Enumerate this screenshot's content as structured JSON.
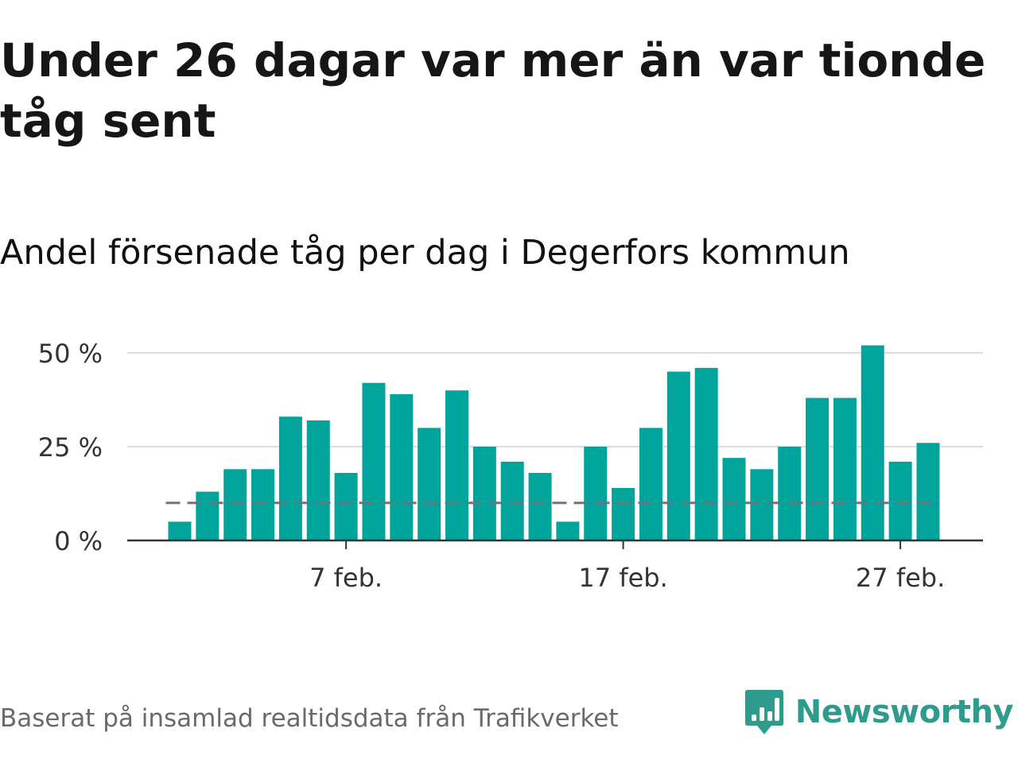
{
  "title": "Under 26 dagar var mer än var tionde tåg sent",
  "subtitle": "Andel försenade tåg per dag i Degerfors kommun",
  "source": "Baserat på insamlad realtidsdata från Trafikverket",
  "brand": {
    "name": "Newsworthy",
    "logo_icon": "newsworthy-logo-icon",
    "color": "#2f9b8c"
  },
  "colors": {
    "bar": "#00a49a",
    "reference_line": "#77707a",
    "grid": "#dddddd",
    "axis": "#333333",
    "tick_text": "#333333"
  },
  "chart_data": {
    "type": "bar",
    "x": [
      "2024-02-01",
      "2024-02-02",
      "2024-02-03",
      "2024-02-04",
      "2024-02-05",
      "2024-02-06",
      "2024-02-07",
      "2024-02-08",
      "2024-02-09",
      "2024-02-10",
      "2024-02-11",
      "2024-02-12",
      "2024-02-13",
      "2024-02-14",
      "2024-02-15",
      "2024-02-16",
      "2024-02-17",
      "2024-02-18",
      "2024-02-19",
      "2024-02-20",
      "2024-02-21",
      "2024-02-22",
      "2024-02-23",
      "2024-02-24",
      "2024-02-25",
      "2024-02-26",
      "2024-02-27",
      "2024-02-28"
    ],
    "values": [
      5,
      13,
      19,
      19,
      33,
      32,
      18,
      42,
      39,
      30,
      40,
      25,
      21,
      18,
      5,
      25,
      14,
      30,
      45,
      46,
      22,
      19,
      25,
      38,
      38,
      52,
      21,
      26
    ],
    "reference_value": 10,
    "ylim": [
      0,
      52
    ],
    "yticks": [
      0,
      25,
      50
    ],
    "ytick_labels": [
      "0 %",
      "25 %",
      "50 %"
    ],
    "xticks": [
      "2024-02-07",
      "2024-02-17",
      "2024-02-27"
    ],
    "xtick_labels": [
      "7 feb.",
      "17 feb.",
      "27 feb."
    ],
    "xlabel": "",
    "ylabel": "",
    "grid": true
  }
}
